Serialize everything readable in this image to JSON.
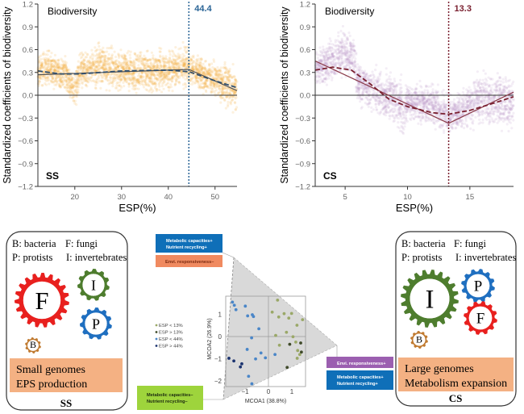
{
  "chart_data": [
    {
      "type": "scatter",
      "panel_label": "SS",
      "title": "Biodiversity",
      "xlabel": "ESP(%)",
      "ylabel": "Standardized coefficients of biodiversity",
      "xlim": [
        12.1,
        54.7
      ],
      "ylim": [
        -1.2,
        1.2
      ],
      "xticks": [
        20,
        30,
        40,
        50
      ],
      "yticks": [
        -1.2,
        -0.9,
        -0.6,
        -0.3,
        0.0,
        0.3,
        0.6,
        0.9,
        1.2
      ],
      "ytick_labels": [
        "−1.2",
        "−0.9",
        "−0.6",
        "−0.3",
        "0.0",
        "0.3",
        "0.6",
        "0.9",
        "1.2"
      ],
      "cloud_color": "#f0a830",
      "line_color": "#555555",
      "dashed_color": "#2f4f6f",
      "threshold": 44.4,
      "threshold_label": "44.4",
      "threshold_color": "#2a6496",
      "cloud_envelope": [
        [
          12.1,
          0.05,
          0.6
        ],
        [
          15,
          0.05,
          0.65
        ],
        [
          18,
          0.0,
          0.55
        ],
        [
          20,
          -0.25,
          0.4
        ],
        [
          21,
          0.0,
          0.6
        ],
        [
          25,
          0.0,
          0.75
        ],
        [
          30,
          0.0,
          0.65
        ],
        [
          35,
          -0.05,
          0.65
        ],
        [
          40,
          0.0,
          0.65
        ],
        [
          44,
          0.0,
          0.8
        ],
        [
          45,
          0.05,
          0.6
        ],
        [
          48,
          -0.05,
          0.55
        ],
        [
          50,
          -0.1,
          0.5
        ],
        [
          54.7,
          -0.3,
          0.5
        ]
      ],
      "solid_line": [
        [
          12.1,
          0.27
        ],
        [
          44.4,
          0.34
        ],
        [
          54.7,
          0.06
        ]
      ],
      "dashed_line": [
        [
          12.1,
          0.32
        ],
        [
          17,
          0.28
        ],
        [
          21,
          0.28
        ],
        [
          30,
          0.32
        ],
        [
          40,
          0.33
        ],
        [
          44.4,
          0.31
        ],
        [
          50,
          0.19
        ],
        [
          54.7,
          0.1
        ]
      ]
    },
    {
      "type": "scatter",
      "panel_label": "CS",
      "title": "Biodiversity",
      "xlabel": "ESP(%)",
      "ylabel": "Standardized coefficients of biodiversity",
      "xlim": [
        2.6,
        18.5
      ],
      "ylim": [
        -1.2,
        1.2
      ],
      "xticks": [
        5,
        10,
        15
      ],
      "yticks": [
        -1.2,
        -0.9,
        -0.6,
        -0.3,
        0.0,
        0.3,
        0.6,
        0.9,
        1.2
      ],
      "ytick_labels": [
        "−1.2",
        "−0.9",
        "−0.6",
        "−0.3",
        "0.0",
        "0.3",
        "0.6",
        "0.9",
        "1.2"
      ],
      "cloud_color": "#b894c8",
      "line_color": "#8a3a4a",
      "dashed_color": "#7a2030",
      "threshold": 13.3,
      "threshold_label": "13.3",
      "threshold_color": "#7a2030",
      "cloud_envelope": [
        [
          2.6,
          0.05,
          0.6
        ],
        [
          4,
          0.1,
          0.85
        ],
        [
          5,
          0.15,
          0.95
        ],
        [
          5.7,
          0.2,
          0.85
        ],
        [
          6,
          -0.2,
          0.55
        ],
        [
          7,
          -0.3,
          0.45
        ],
        [
          9,
          -0.45,
          0.4
        ],
        [
          9.7,
          -0.7,
          0.3
        ],
        [
          10,
          -0.4,
          0.2
        ],
        [
          12,
          -0.45,
          0.25
        ],
        [
          13,
          -0.6,
          0.1
        ],
        [
          14,
          -0.55,
          0.05
        ],
        [
          15,
          -0.5,
          0.3
        ],
        [
          16,
          -0.5,
          0.45
        ],
        [
          18.5,
          -0.6,
          0.35
        ]
      ],
      "solid_line": [
        [
          2.6,
          0.45
        ],
        [
          13.3,
          -0.37
        ],
        [
          18.5,
          0.04
        ]
      ],
      "dashed_line": [
        [
          2.6,
          0.33
        ],
        [
          4,
          0.37
        ],
        [
          5.5,
          0.33
        ],
        [
          7,
          0.15
        ],
        [
          8.5,
          -0.05
        ],
        [
          10,
          -0.15
        ],
        [
          12,
          -0.23
        ],
        [
          13.3,
          -0.25
        ],
        [
          15,
          -0.2
        ],
        [
          17,
          -0.1
        ],
        [
          18.5,
          -0.02
        ]
      ]
    },
    {
      "type": "scatter",
      "xlabel": "MCOA1 (38.8%)",
      "ylabel": "MCOA2 (26.9%)",
      "xlim": [
        -1.8,
        1.6
      ],
      "ylim": [
        -2.2,
        1.8
      ],
      "xticks": [
        -1,
        0,
        1
      ],
      "yticks": [
        -2,
        -1,
        0,
        1
      ],
      "xtick_labels": [
        "−1",
        "0",
        "1"
      ],
      "ytick_labels": [
        "−2",
        "−1",
        "0",
        "1"
      ],
      "series": [
        {
          "name": "ESP < 13%",
          "color": "#9aa868",
          "points": [
            [
              0.39,
              1.64
            ],
            [
              0.16,
              1.1
            ],
            [
              0.44,
              0.88
            ],
            [
              0.67,
              1.03
            ],
            [
              0.99,
              1.04
            ],
            [
              0.87,
              0.83
            ],
            [
              1.46,
              0.76
            ],
            [
              1.22,
              0.51
            ],
            [
              0.77,
              0.19
            ],
            [
              0.31,
              0.05
            ],
            [
              1.05,
              -0.01
            ],
            [
              0.47,
              -0.39
            ],
            [
              1.17,
              -0.25
            ],
            [
              1.25,
              -0.63
            ],
            [
              1.34,
              -0.81
            ],
            [
              1.23,
              -0.98
            ]
          ]
        },
        {
          "name": "ESP > 13%",
          "color": "#3f4a2a",
          "points": [
            [
              0.91,
              -0.35
            ],
            [
              1.38,
              -0.29
            ],
            [
              1.41,
              -0.7
            ],
            [
              0.8,
              -1.39
            ]
          ]
        },
        {
          "name": "ESP < 44%",
          "color": "#4a86c8",
          "points": [
            [
              -1.54,
              1.55
            ],
            [
              -1.46,
              1.41
            ],
            [
              -1.39,
              1.21
            ],
            [
              -0.99,
              1.37
            ],
            [
              -0.89,
              0.93
            ],
            [
              -0.69,
              0.98
            ],
            [
              -0.64,
              0.9
            ],
            [
              -0.41,
              0.35
            ],
            [
              -0.72,
              -0.06
            ],
            [
              -0.91,
              -0.58
            ],
            [
              -0.32,
              -0.74
            ],
            [
              -0.55,
              -1.01
            ],
            [
              -0.13,
              -0.96
            ],
            [
              -0.85,
              -1.79
            ],
            [
              -0.71,
              -2.13
            ],
            [
              0.28,
              -0.81
            ]
          ]
        },
        {
          "name": "ESP > 44%",
          "color": "#1c3470",
          "points": [
            [
              -1.69,
              -0.98
            ],
            [
              -1.48,
              -1.1
            ],
            [
              -1.14,
              -1.23
            ],
            [
              -1.2,
              -1.37
            ]
          ]
        }
      ]
    }
  ],
  "diagram": {
    "ss_panel": {
      "legend_line1_a": "B: bacteria",
      "legend_line1_b": "F: fungi",
      "legend_line2_a": "P: protists",
      "legend_line2_b": "I: invertebrates",
      "gears": [
        {
          "letter": "F",
          "color": "#e8201e"
        },
        {
          "letter": "I",
          "color": "#4e7d2e"
        },
        {
          "letter": "P",
          "color": "#1f6fc0"
        },
        {
          "letter": "B",
          "color": "#c07a30"
        }
      ],
      "traits_line1": "Small genomes",
      "traits_line2": "EPS production",
      "traits_color": "#f4b183",
      "label": "SS"
    },
    "cs_panel": {
      "legend_line1_a": "B: bacteria",
      "legend_line1_b": "F: fungi",
      "legend_line2_a": "P: protists",
      "legend_line2_b": "I: invertebrates",
      "gears": [
        {
          "letter": "I",
          "color": "#4e7d2e"
        },
        {
          "letter": "P",
          "color": "#1f6fc0"
        },
        {
          "letter": "F",
          "color": "#e8201e"
        },
        {
          "letter": "B",
          "color": "#c07a30"
        }
      ],
      "traits_line1": "Large genomes",
      "traits_line2": "Metabolism expansion",
      "traits_color": "#f4b183",
      "label": "CS"
    },
    "callouts": {
      "top_blue_1": "Metabolic capacities+",
      "top_blue_2": "Nutrient recycling+",
      "top_orange": "Envi. responsiveness–",
      "right_purple": "Envi. responsiveness+",
      "right_blue_1": "Metabolic capacities+",
      "right_blue_2": "Nutrient recycling+",
      "bottom_green_1": "Metabolic capacities–",
      "bottom_green_2": "Nutrient recycling–"
    },
    "colors": {
      "blue": "#0f6fb8",
      "orange": "#f08a60",
      "purple": "#9b5fb0",
      "green": "#9ed43c"
    }
  }
}
